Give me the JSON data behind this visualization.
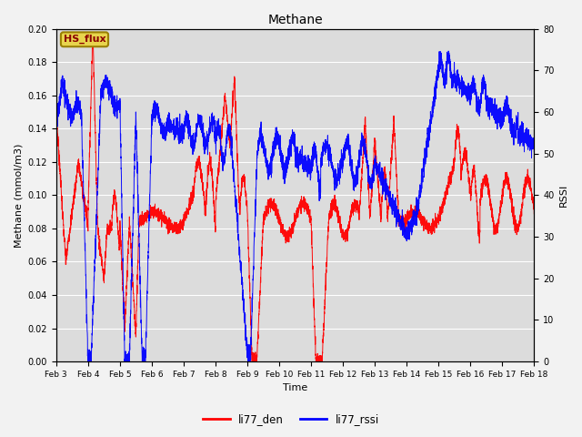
{
  "title": "Methane",
  "ylabel_left": "Methane (mmol/m3)",
  "ylabel_right": "RSSI",
  "xlabel": "Time",
  "ylim_left": [
    0.0,
    0.2
  ],
  "ylim_right": [
    0,
    80
  ],
  "legend_box_label": "HS_flux",
  "legend_entries": [
    "li77_den",
    "li77_rssi"
  ],
  "legend_colors": [
    "red",
    "blue"
  ],
  "xtick_labels": [
    "Feb 3",
    "Feb 4",
    "Feb 5",
    "Feb 6",
    "Feb 7",
    "Feb 8",
    "Feb 9",
    "Feb 10",
    "Feb 11",
    "Feb 12",
    "Feb 13",
    "Feb 14",
    "Feb 15",
    "Feb 16",
    "Feb 17",
    "Feb 18"
  ],
  "bg_color": "#dcdcdc",
  "grid_color": "#ffffff",
  "fig_bg": "#f2f2f2"
}
